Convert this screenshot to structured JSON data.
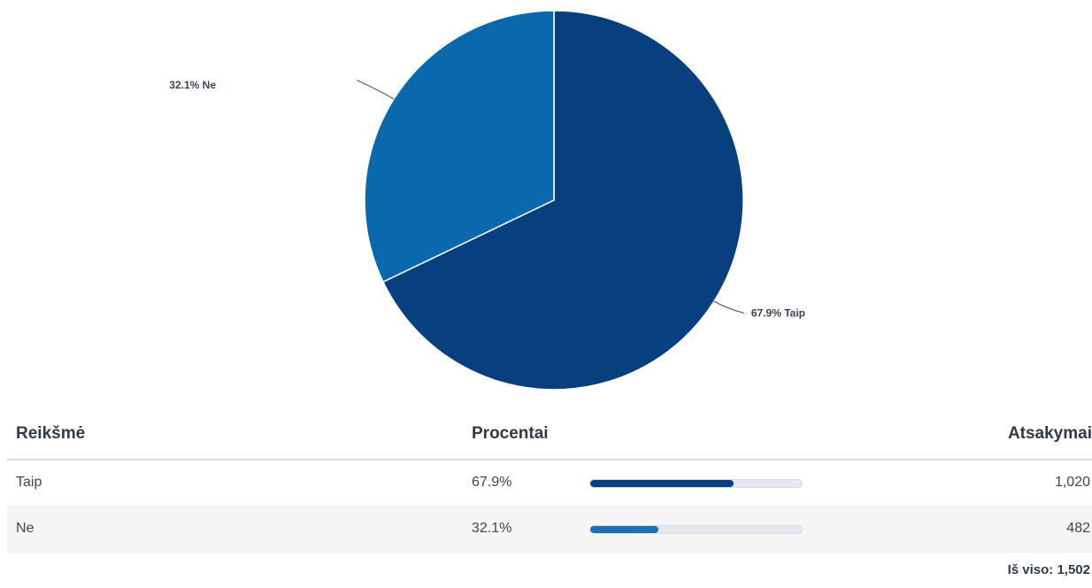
{
  "chart_data": {
    "type": "pie",
    "title": "",
    "slices": [
      {
        "label": "Taip",
        "value": 67.9,
        "display": "67.9% Taip",
        "color": "#083f7f",
        "label_side": "right"
      },
      {
        "label": "Ne",
        "value": 32.1,
        "display": "32.1% Ne",
        "color": "#0a68ac",
        "label_side": "left"
      }
    ]
  },
  "table": {
    "headers": {
      "value": "Reikšmė",
      "percent": "Procentai",
      "responses": "Atsakymai"
    },
    "rows": [
      {
        "value": "Taip",
        "percent": "67.9%",
        "fraction": 0.679,
        "count": "1,020",
        "color": "#083f7f"
      },
      {
        "value": "Ne",
        "percent": "32.1%",
        "fraction": 0.321,
        "count": "482",
        "color": "#1b6fb3"
      }
    ],
    "total_label": "Iš viso:",
    "total_value": "1,502"
  }
}
